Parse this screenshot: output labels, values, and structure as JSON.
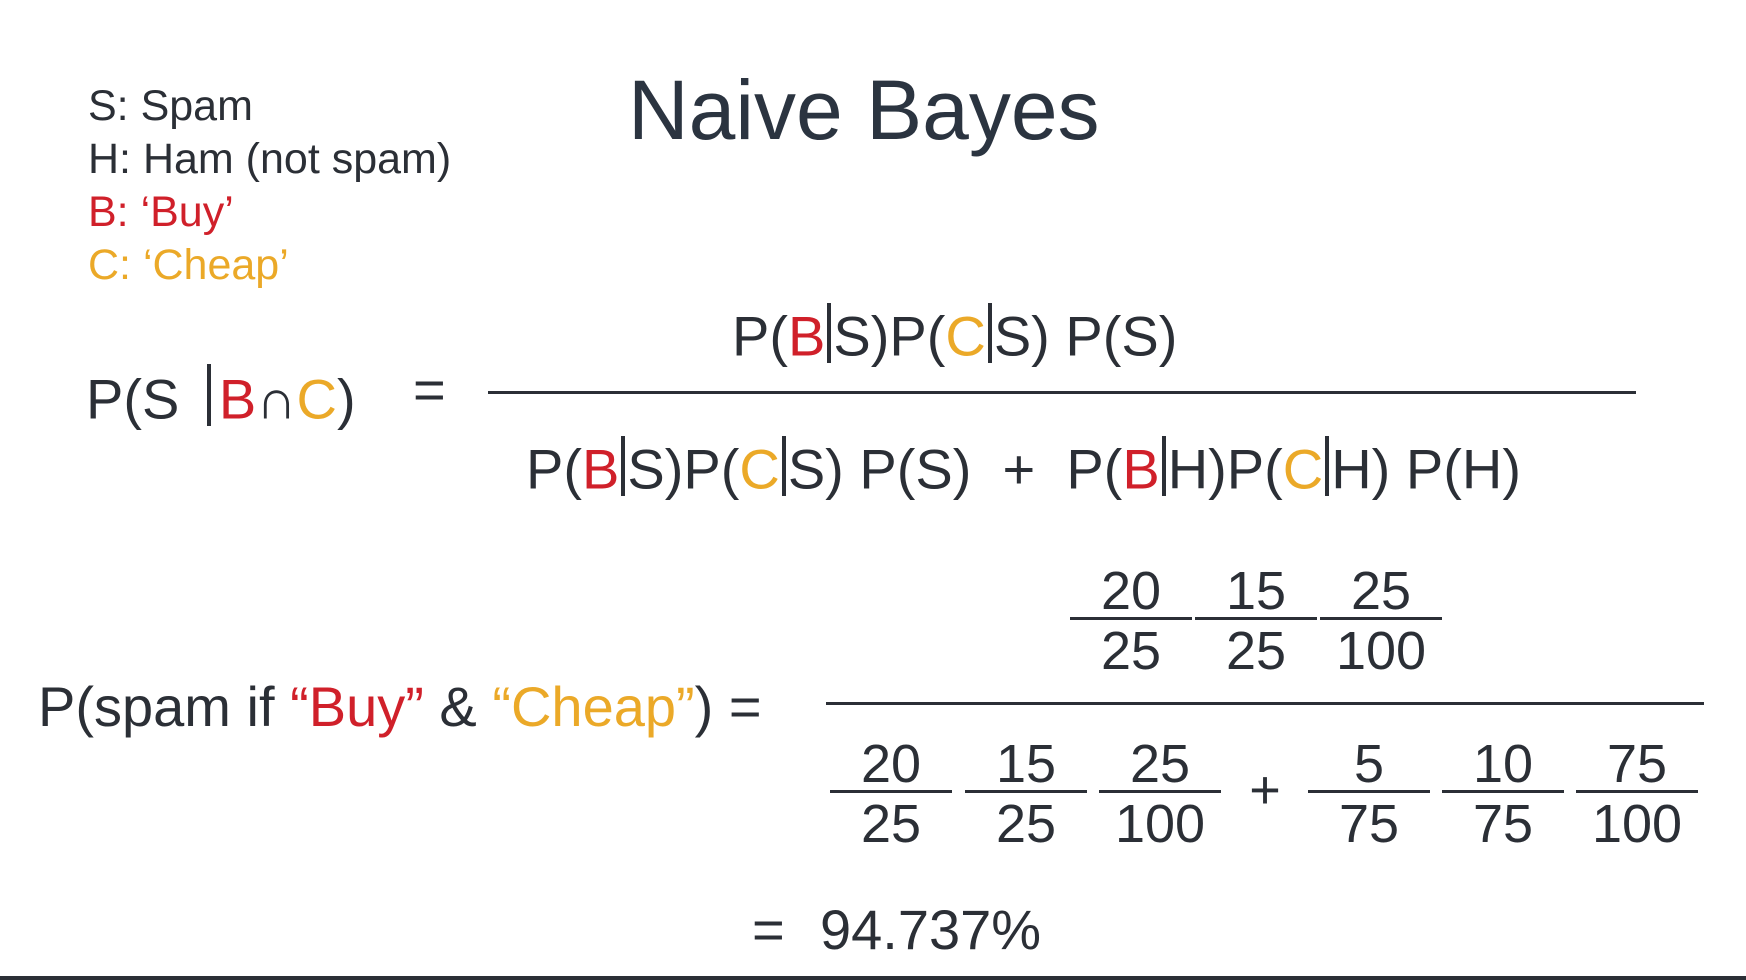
{
  "title": "Naive Bayes",
  "legend": [
    {
      "text": "S: Spam",
      "color": "#2b2f36"
    },
    {
      "text": "H: Ham (not spam)",
      "color": "#2b2f36"
    },
    {
      "text": "B: ‘Buy’",
      "color": "#d0202a"
    },
    {
      "text": "C: ‘Cheap’",
      "color": "#eba928"
    }
  ],
  "colors": {
    "text": "#2b2f36",
    "buy": "#d0202a",
    "cheap": "#eba928"
  },
  "general": {
    "lhs": {
      "p_open": "P(S",
      "b": "B",
      "cap": "∩",
      "c": "C",
      "close": ")",
      "equals": "="
    },
    "numerator": {
      "pb_open": "P(",
      "b": "B",
      "s1": "S)",
      "pc_open": "P(",
      "c": "C",
      "s2": "S)",
      "ps": "P(S)"
    },
    "denominator": {
      "pb_open": "P(",
      "b": "B",
      "s1": "S)",
      "pc_open": "P(",
      "c": "C",
      "s2": "S)",
      "ps": "P(S)",
      "plus": "+",
      "pb2_open": "P(",
      "b2": "B",
      "h1": "H)",
      "pc2_open": "P(",
      "c2": "C",
      "h2": "H)",
      "ph": "P(H)"
    }
  },
  "numeric": {
    "lhs": {
      "open": "P(spam if ",
      "buy": "“Buy”",
      "amp": " & ",
      "cheap": "“Cheap”",
      "close": ") ="
    },
    "numerator": [
      {
        "n": "20",
        "d": "25"
      },
      {
        "n": "15",
        "d": "25"
      },
      {
        "n": "25",
        "d": "100"
      }
    ],
    "denominator_left": [
      {
        "n": "20",
        "d": "25"
      },
      {
        "n": "15",
        "d": "25"
      },
      {
        "n": "25",
        "d": "100"
      }
    ],
    "plus": "+",
    "denominator_right": [
      {
        "n": "5",
        "d": "75"
      },
      {
        "n": "10",
        "d": "75"
      },
      {
        "n": "75",
        "d": "100"
      }
    ]
  },
  "result": {
    "equals": "=",
    "value": "94.737%"
  }
}
